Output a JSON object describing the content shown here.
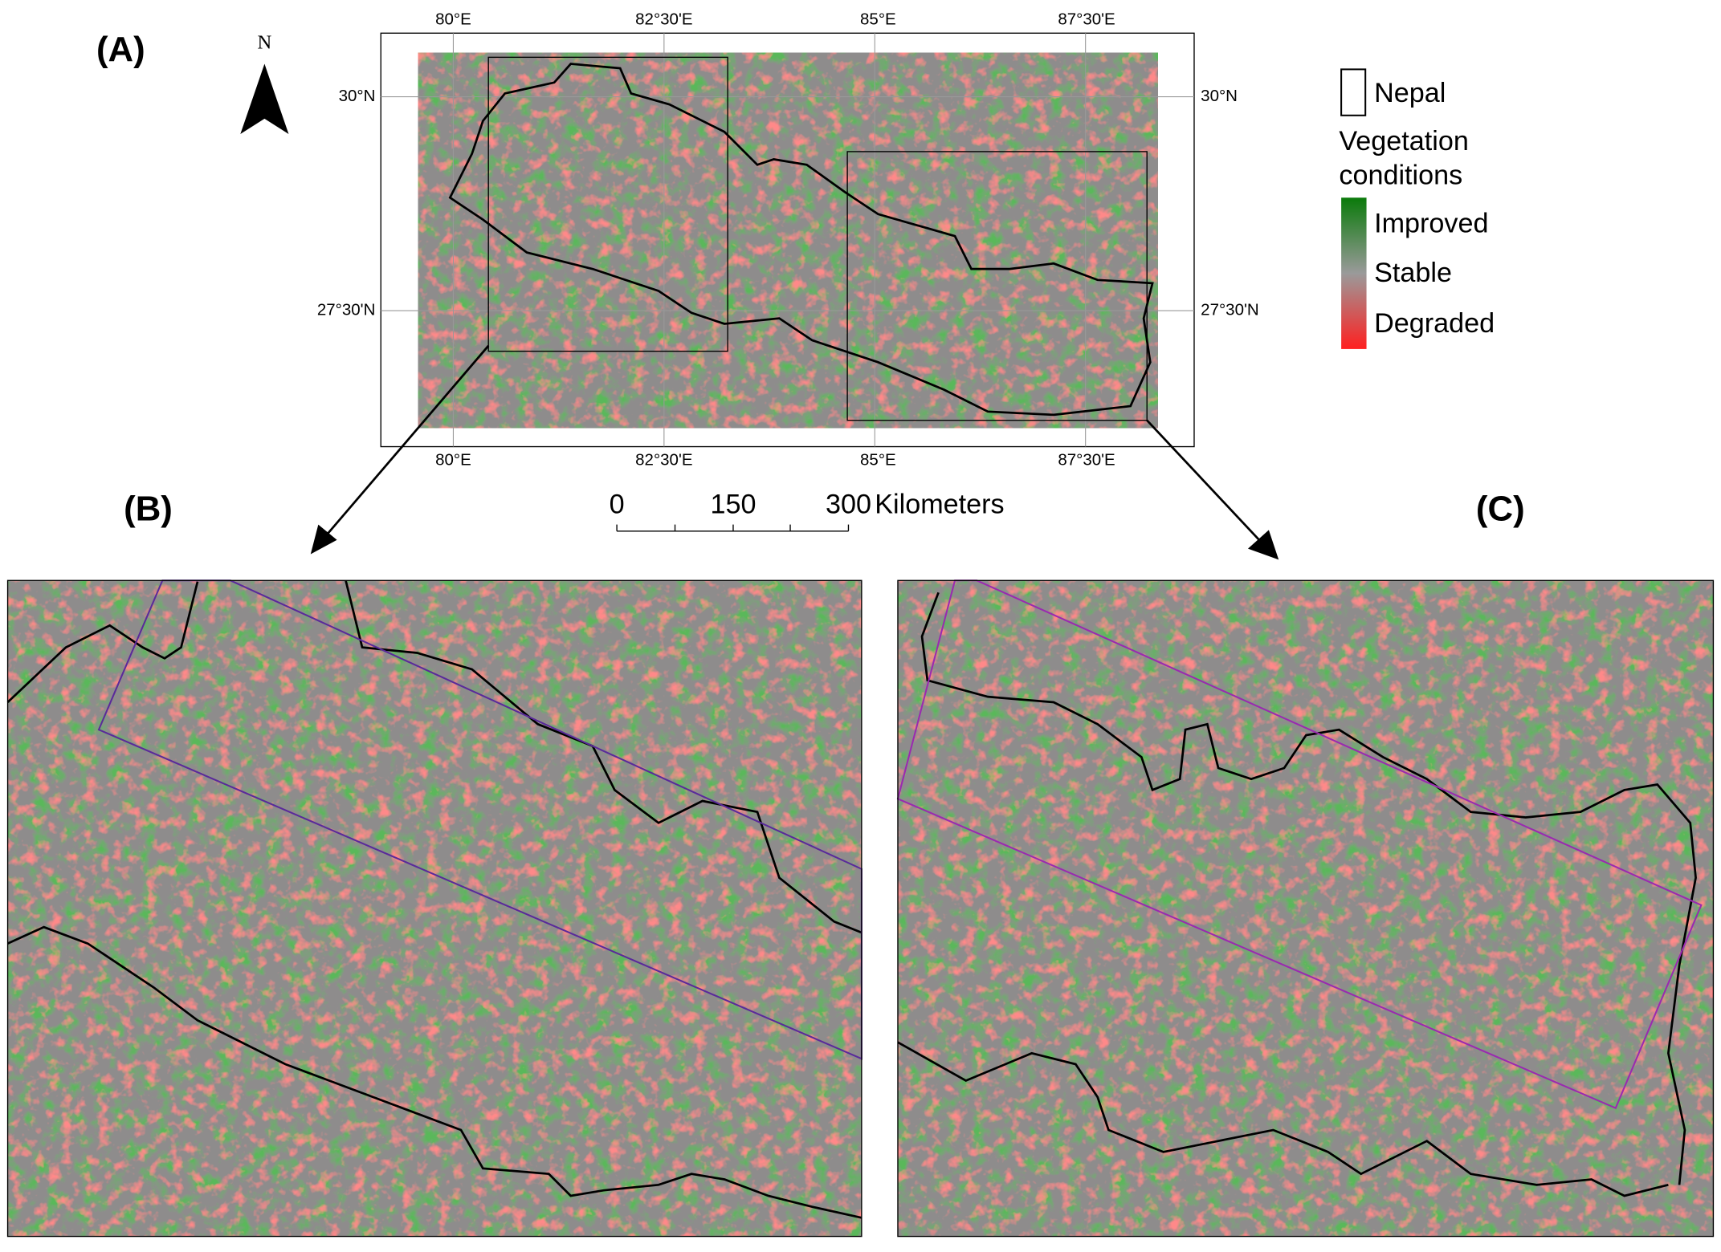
{
  "panel_a": {
    "label": "(A)",
    "north": "N",
    "top_labels": [
      "80°E",
      "82°30'E",
      "85°E",
      "87°30'E"
    ],
    "bottom_labels": [
      "80°E",
      "82°30'E",
      "85°E",
      "87°30'E"
    ],
    "left_labels": [
      "30°N",
      "27°30'N"
    ],
    "right_labels": [
      "30°N",
      "27°30'N"
    ]
  },
  "scale_bar": {
    "labels": [
      "0",
      "150",
      "300"
    ],
    "unit": "Kilometers"
  },
  "legend": {
    "boundary": "Nepal",
    "title_line1": "Vegetation",
    "title_line2": "conditions",
    "classes": [
      "Improved",
      "Stable",
      "Degraded"
    ]
  },
  "panel_b": {
    "label": "(B)"
  },
  "panel_c": {
    "label": "(C)"
  }
}
